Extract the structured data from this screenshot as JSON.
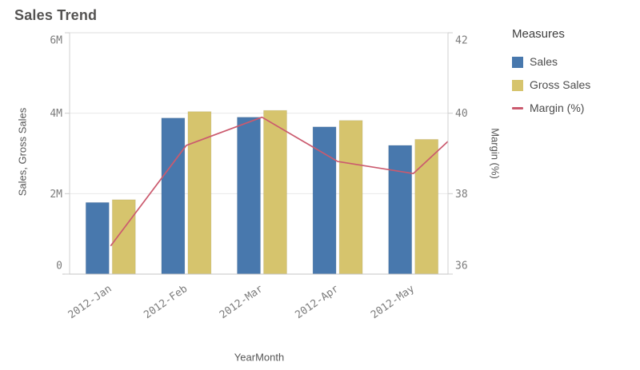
{
  "title": "Sales Trend",
  "legend": {
    "title": "Measures",
    "items": [
      {
        "label": "Sales",
        "marker": "square"
      },
      {
        "label": "Gross Sales",
        "marker": "square"
      },
      {
        "label": "Margin (%)",
        "marker": "line"
      }
    ]
  },
  "chart_data": {
    "type": "combo",
    "title": "Sales Trend",
    "x_axis_title": "YearMonth",
    "left_axis_title": "Sales, Gross Sales",
    "right_axis_title": "Margin (%)",
    "categories": [
      "2012-Jan",
      "2012-Feb",
      "2012-Mar",
      "2012-Apr",
      "2012-May"
    ],
    "series": [
      {
        "name": "Sales",
        "type": "bar",
        "axis": "left",
        "color": "#4878ad",
        "values_millions": [
          1.78,
          3.88,
          3.9,
          3.66,
          3.2
        ]
      },
      {
        "name": "Gross Sales",
        "type": "bar",
        "axis": "left",
        "color": "#d6c46d",
        "values_millions": [
          1.85,
          4.04,
          4.07,
          3.82,
          3.35
        ]
      },
      {
        "name": "Margin (%)",
        "type": "line",
        "axis": "right",
        "color": "#cb5a6e",
        "values_percent": [
          36.7,
          39.2,
          39.9,
          38.8,
          38.5
        ],
        "clipped_value_at_right_edge": 39.3
      }
    ],
    "left_axis": {
      "min": 0,
      "max_millions": 6,
      "tick_values_millions": [
        0,
        2,
        4,
        6
      ],
      "tick_labels": [
        "0",
        "2M",
        "4M",
        "6M"
      ]
    },
    "right_axis": {
      "min": 36,
      "max": 42,
      "tick_values": [
        36,
        38,
        40,
        42
      ],
      "tick_labels": [
        "36",
        "38",
        "40",
        "42"
      ]
    },
    "grid": true,
    "legend_position": "right"
  }
}
